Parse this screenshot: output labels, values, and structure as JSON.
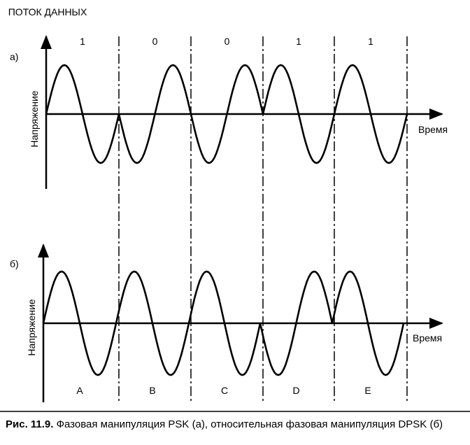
{
  "figure": {
    "data_stream_label": "ПОТОК ДАННЫХ",
    "panel_a": {
      "label": "а)",
      "bits": [
        "1",
        "0",
        "0",
        "1",
        "1"
      ],
      "y_axis_label": "Напряжение",
      "x_axis_label": "Время"
    },
    "panel_b": {
      "label": "б)",
      "segments": [
        "A",
        "B",
        "C",
        "D",
        "E"
      ],
      "y_axis_label": "Напряжение",
      "x_axis_label": "Время"
    },
    "caption": {
      "number": "Рис. 11.9.",
      "text": "Фазовая манипуляция PSK (а), относительная фазовая манипуляция DPSK (б)"
    }
  }
}
